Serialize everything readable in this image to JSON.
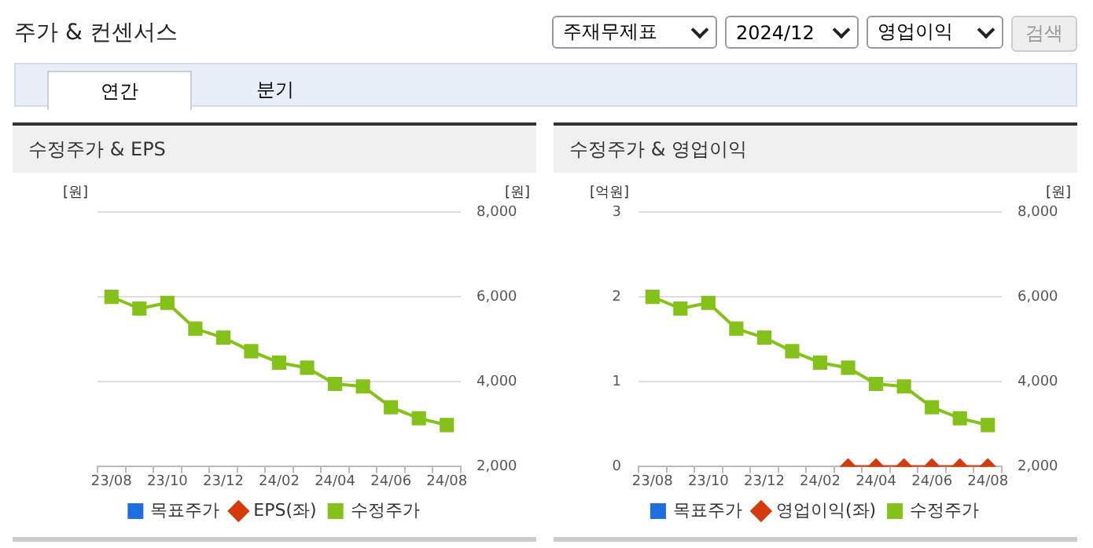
{
  "chart_data": [
    {
      "type": "line",
      "title": "수정주가 & EPS",
      "ylabel": "[원]",
      "y2label": "[원]",
      "annotations": [
        "주가 & 컨센서스",
        "주재무제표",
        "2024/12",
        "영업이익",
        "검색",
        "연간",
        "분기"
      ],
      "categories": [
        "23/08",
        null,
        "23/10",
        null,
        "23/12",
        null,
        "24/02",
        null,
        "24/04",
        null,
        "24/06",
        null,
        "24/08"
      ],
      "series": [
        {
          "name": "목표주가",
          "color": "#1f6fdf",
          "marker": "square",
          "values": [
            null,
            null,
            null,
            null,
            null,
            null,
            null,
            null,
            null,
            null,
            null,
            null,
            null
          ]
        },
        {
          "name": "EPS(좌)",
          "color": "#d53a0a",
          "marker": "diamond",
          "values": [
            null,
            null,
            null,
            null,
            null,
            null,
            null,
            null,
            null,
            null,
            null,
            null,
            null
          ]
        },
        {
          "name": "수정주가",
          "color": "#84c11a",
          "marker": "square",
          "axis": "y2",
          "values": [
            6000,
            5725,
            5860,
            5250,
            5040,
            4720,
            4450,
            4330,
            3950,
            3890,
            3400,
            3140,
            2980
          ]
        }
      ],
      "y2lim": [
        2000,
        8000
      ],
      "y2ticks": [
        {
          "value": 2000,
          "label": "2,000"
        },
        {
          "value": 4000,
          "label": "4,000"
        },
        {
          "value": 6000,
          "label": "6,000"
        },
        {
          "value": 8000,
          "label": "8,000"
        }
      ],
      "grid": "y",
      "legend": "bottom"
    },
    {
      "type": "line",
      "title": "수정주가 & 영업이익",
      "ylabel": "[억원]",
      "y2label": "[원]",
      "categories": [
        "23/08",
        null,
        "23/10",
        null,
        "23/12",
        null,
        "24/02",
        null,
        "24/04",
        null,
        "24/06",
        null,
        "24/08"
      ],
      "series": [
        {
          "name": "목표주가",
          "color": "#1f6fdf",
          "marker": "square",
          "values": [
            null,
            null,
            null,
            null,
            null,
            null,
            null,
            null,
            null,
            null,
            null,
            null,
            null
          ]
        },
        {
          "name": "영업이익(좌)",
          "color": "#d53a0a",
          "marker": "diamond",
          "values": [
            null,
            null,
            null,
            null,
            null,
            null,
            null,
            0,
            0,
            0,
            0,
            0,
            0
          ]
        },
        {
          "name": "수정주가",
          "color": "#84c11a",
          "marker": "square",
          "axis": "y2",
          "values": [
            6000,
            5725,
            5860,
            5250,
            5040,
            4720,
            4450,
            4330,
            3950,
            3890,
            3400,
            3140,
            2980
          ]
        }
      ],
      "ylim": [
        0,
        3
      ],
      "yticks": [
        0,
        1,
        2,
        3
      ],
      "y2lim": [
        2000,
        8000
      ],
      "y2ticks": [
        {
          "value": 2000,
          "label": "2,000"
        },
        {
          "value": 4000,
          "label": "4,000"
        },
        {
          "value": 6000,
          "label": "6,000"
        },
        {
          "value": 8000,
          "label": "8,000"
        }
      ],
      "grid": "y",
      "legend": "bottom"
    }
  ]
}
